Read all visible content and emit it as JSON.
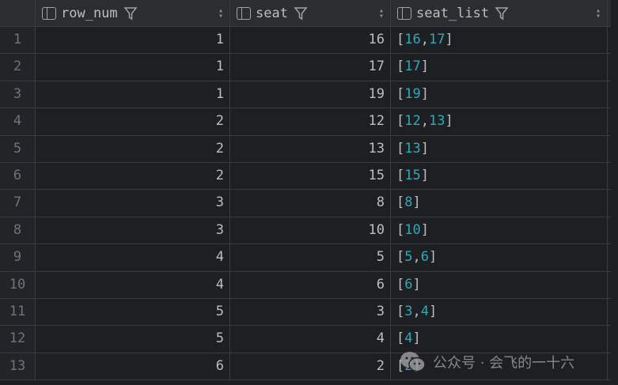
{
  "columns": [
    {
      "label": "row_num"
    },
    {
      "label": "seat"
    },
    {
      "label": "seat_list"
    }
  ],
  "rows": [
    {
      "idx": "1",
      "row_num": "1",
      "seat": "16",
      "seat_list": [
        "16",
        "17"
      ]
    },
    {
      "idx": "2",
      "row_num": "1",
      "seat": "17",
      "seat_list": [
        "17"
      ]
    },
    {
      "idx": "3",
      "row_num": "1",
      "seat": "19",
      "seat_list": [
        "19"
      ]
    },
    {
      "idx": "4",
      "row_num": "2",
      "seat": "12",
      "seat_list": [
        "12",
        "13"
      ]
    },
    {
      "idx": "5",
      "row_num": "2",
      "seat": "13",
      "seat_list": [
        "13"
      ]
    },
    {
      "idx": "6",
      "row_num": "2",
      "seat": "15",
      "seat_list": [
        "15"
      ]
    },
    {
      "idx": "7",
      "row_num": "3",
      "seat": "8",
      "seat_list": [
        "8"
      ]
    },
    {
      "idx": "8",
      "row_num": "3",
      "seat": "10",
      "seat_list": [
        "10"
      ]
    },
    {
      "idx": "9",
      "row_num": "4",
      "seat": "5",
      "seat_list": [
        "5",
        "6"
      ]
    },
    {
      "idx": "10",
      "row_num": "4",
      "seat": "6",
      "seat_list": [
        "6"
      ]
    },
    {
      "idx": "11",
      "row_num": "5",
      "seat": "3",
      "seat_list": [
        "3",
        "4"
      ]
    },
    {
      "idx": "12",
      "row_num": "5",
      "seat": "4",
      "seat_list": [
        "4"
      ]
    },
    {
      "idx": "13",
      "row_num": "6",
      "seat": "2",
      "seat_list": [
        "2"
      ]
    }
  ],
  "watermark": {
    "text": "公众号 · 会飞的一十六",
    "icon": "wechat-icon"
  },
  "colors": {
    "background": "#1e1f22",
    "header": "#2b2d30",
    "array_value": "#2aacb8"
  }
}
